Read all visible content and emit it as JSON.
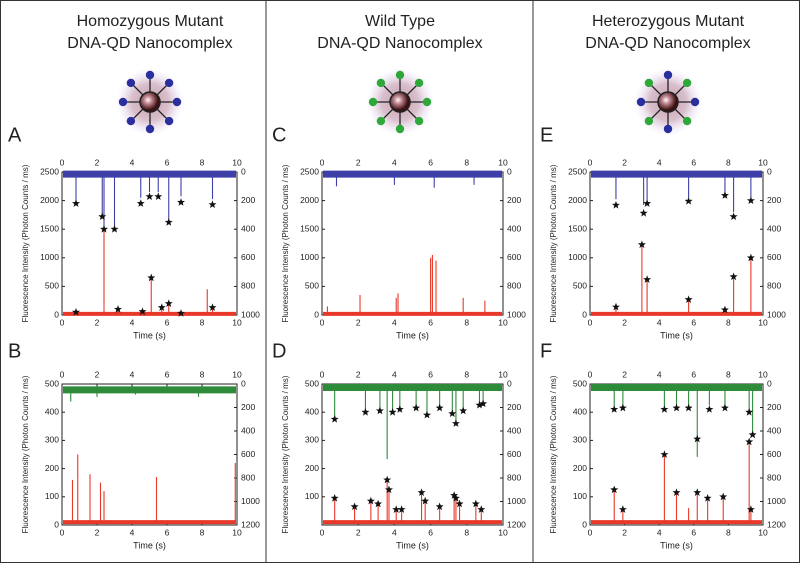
{
  "chart_data": [
    {
      "type": "trace",
      "panel": "A",
      "title": [
        "Homozygous Mutant",
        "DNA-QD Nanocomplex"
      ],
      "probe_colors": [
        "#2b2f9e",
        "#2b2f9e",
        "#2b2f9e",
        "#2b2f9e",
        "#2b2f9e",
        "#2b2f9e",
        "#2b2f9e",
        "#2b2f9e"
      ],
      "xlabel": "Time (s)",
      "ylabel": "Fluorescence Intensity (Photon Counts / ms)",
      "xlim": [
        0,
        10
      ],
      "xticks": [
        0,
        2,
        4,
        6,
        8,
        10
      ],
      "ylim": [
        0,
        2500
      ],
      "yticks": [
        0,
        500,
        1000,
        1500,
        2000,
        2500
      ],
      "y2lim": [
        1000,
        0
      ],
      "y2ticks": [
        0,
        200,
        400,
        600,
        800,
        1000
      ],
      "series": [
        {
          "color": "#3d40a8",
          "axis": "y2",
          "baseline": 15,
          "x": [
            0.8,
            2.3,
            2.4,
            3.0,
            4.5,
            5.0,
            5.5,
            6.1,
            6.8,
            8.6
          ],
          "values": [
            200,
            300,
            400,
            400,
            180,
            140,
            140,
            350,
            170,
            190
          ]
        },
        {
          "color": "#e8382a",
          "axis": "y",
          "baseline": 20,
          "x": [
            0.8,
            2.4,
            3.2,
            4.6,
            5.1,
            5.7,
            6.1,
            6.7,
            8.3,
            8.6
          ],
          "values": [
            80,
            1500,
            100,
            70,
            650,
            120,
            200,
            60,
            450,
            150
          ]
        }
      ],
      "markers": {
        "x": [
          0.8,
          2.3,
          2.4,
          3.0,
          4.5,
          5.0,
          5.5,
          6.1,
          6.8,
          8.6,
          0.8,
          3.2,
          4.6,
          5.1,
          5.7,
          6.1,
          6.8,
          8.6
        ],
        "y": [
          1950,
          1720,
          1500,
          1500,
          1950,
          2070,
          2070,
          1620,
          1970,
          1930,
          50,
          100,
          60,
          650,
          130,
          200,
          30,
          130
        ]
      }
    },
    {
      "type": "trace",
      "panel": "B",
      "xlabel": "Time (s)",
      "ylabel": "Fluorescence Intensity (Photon Counts / ms)",
      "xlim": [
        0,
        10
      ],
      "xticks": [
        0,
        2,
        4,
        6,
        8,
        10
      ],
      "ylim": [
        0,
        500
      ],
      "yticks": [
        0,
        100,
        200,
        300,
        400,
        500
      ],
      "y2lim": [
        1200,
        0
      ],
      "y2ticks": [
        0,
        200,
        400,
        600,
        800,
        1000,
        1200
      ],
      "series": [
        {
          "color": "#2e8b3a",
          "axis": "y2",
          "baseline": 50,
          "x": [
            0.5,
            2.0,
            4.2,
            7.8
          ],
          "values": [
            150,
            110,
            90,
            110
          ]
        },
        {
          "color": "#e8382a",
          "axis": "y",
          "baseline": 10,
          "x": [
            0.6,
            0.9,
            1.6,
            2.2,
            2.4,
            5.4,
            9.9
          ],
          "values": [
            160,
            250,
            180,
            150,
            120,
            170,
            220
          ]
        }
      ]
    },
    {
      "type": "trace",
      "panel": "C",
      "title": [
        "Wild Type",
        "DNA-QD Nanocomplex"
      ],
      "probe_colors": [
        "#2fa83a",
        "#2fa83a",
        "#2fa83a",
        "#2fa83a",
        "#2fa83a",
        "#2fa83a",
        "#2fa83a",
        "#2fa83a"
      ],
      "xlabel": "Time (s)",
      "ylabel": "Fluorescence Intensity (Photon Counts / ms)",
      "xlim": [
        0,
        10
      ],
      "xticks": [
        0,
        2,
        4,
        6,
        8,
        10
      ],
      "ylim": [
        0,
        2500
      ],
      "yticks": [
        0,
        500,
        1000,
        1500,
        2000,
        2500
      ],
      "y2lim": [
        1000,
        0
      ],
      "y2ticks": [
        0,
        200,
        400,
        600,
        800,
        1000
      ],
      "series": [
        {
          "color": "#3d40a8",
          "axis": "y2",
          "baseline": 15,
          "x": [
            0.8,
            4.0,
            6.2,
            8.4
          ],
          "values": [
            100,
            90,
            110,
            90
          ]
        },
        {
          "color": "#e8382a",
          "axis": "y",
          "baseline": 20,
          "x": [
            0.3,
            2.1,
            4.1,
            4.2,
            6.0,
            6.1,
            6.3,
            7.8,
            9.0
          ],
          "values": [
            150,
            350,
            300,
            380,
            1000,
            1050,
            950,
            300,
            250
          ]
        }
      ]
    },
    {
      "type": "trace",
      "panel": "D",
      "xlabel": "Time (s)",
      "ylabel": "Fluorescence Intensity (Photon Counts / ms)",
      "xlim": [
        0,
        10
      ],
      "xticks": [
        0,
        2,
        4,
        6,
        8,
        10
      ],
      "ylim": [
        0,
        500
      ],
      "yticks": [
        100,
        200,
        300,
        400,
        500
      ],
      "y2lim": [
        1200,
        0
      ],
      "y2ticks": [
        0,
        200,
        400,
        600,
        800,
        1000,
        1200
      ],
      "series": [
        {
          "color": "#2e8b3a",
          "axis": "y2",
          "baseline": 30,
          "x": [
            0.7,
            2.4,
            3.2,
            3.6,
            3.9,
            4.3,
            5.2,
            5.8,
            6.5,
            7.2,
            7.4,
            7.8,
            8.7,
            8.9
          ],
          "values": [
            290,
            240,
            220,
            640,
            220,
            200,
            200,
            260,
            200,
            250,
            330,
            230,
            170,
            160
          ]
        },
        {
          "color": "#e8382a",
          "axis": "y",
          "baseline": 10,
          "x": [
            0.7,
            1.8,
            2.7,
            3.1,
            3.6,
            3.7,
            4.1,
            4.4,
            5.5,
            5.7,
            6.5,
            7.3,
            7.4,
            7.6,
            8.5,
            8.8
          ],
          "values": [
            90,
            60,
            80,
            70,
            160,
            120,
            50,
            50,
            110,
            80,
            60,
            100,
            90,
            70,
            70,
            50
          ]
        }
      ],
      "markers": {
        "x": [
          0.7,
          2.4,
          3.2,
          3.9,
          4.3,
          5.2,
          5.8,
          6.5,
          7.2,
          7.4,
          7.8,
          8.7,
          8.9,
          0.7,
          1.8,
          2.7,
          3.1,
          3.6,
          3.7,
          4.1,
          4.4,
          5.5,
          5.7,
          6.5,
          7.3,
          7.4,
          7.6,
          8.5,
          8.8
        ],
        "y": [
          375,
          400,
          405,
          400,
          410,
          415,
          390,
          415,
          395,
          360,
          405,
          425,
          430,
          95,
          65,
          85,
          75,
          160,
          125,
          55,
          55,
          115,
          85,
          65,
          105,
          95,
          75,
          75,
          55
        ]
      }
    },
    {
      "type": "trace",
      "panel": "E",
      "title": [
        "Heterozygous Mutant",
        "DNA-QD Nanocomplex"
      ],
      "probe_colors": [
        "#2b2f9e",
        "#2fa83a",
        "#2b2f9e",
        "#2fa83a",
        "#2b2f9e",
        "#2fa83a",
        "#2b2f9e",
        "#2fa83a"
      ],
      "xlabel": "Time (s)",
      "ylabel": "Fluorescence Intensity (Photon Counts / ms)",
      "xlim": [
        0,
        10
      ],
      "xticks": [
        0,
        2,
        4,
        6,
        8,
        10
      ],
      "ylim": [
        0,
        2500
      ],
      "yticks": [
        0,
        500,
        1000,
        1500,
        2000,
        2500
      ],
      "y2lim": [
        1000,
        0
      ],
      "y2ticks": [
        0,
        200,
        400,
        600,
        800,
        1000
      ],
      "series": [
        {
          "color": "#3d40a8",
          "axis": "y2",
          "baseline": 15,
          "x": [
            1.5,
            3.1,
            3.3,
            5.7,
            7.8,
            8.3,
            9.3
          ],
          "values": [
            190,
            230,
            200,
            180,
            160,
            280,
            180
          ]
        },
        {
          "color": "#e8382a",
          "axis": "y",
          "baseline": 20,
          "x": [
            1.5,
            3.0,
            3.3,
            5.7,
            7.8,
            8.3,
            9.3
          ],
          "values": [
            110,
            1200,
            600,
            250,
            90,
            650,
            980
          ]
        }
      ],
      "markers": {
        "x": [
          1.5,
          3.1,
          3.3,
          5.7,
          7.8,
          8.3,
          9.3,
          1.5,
          3.0,
          3.3,
          5.7,
          7.8,
          8.3,
          9.3
        ],
        "y": [
          1920,
          1780,
          1950,
          1990,
          2090,
          1720,
          2000,
          140,
          1230,
          620,
          270,
          90,
          670,
          1000
        ]
      }
    },
    {
      "type": "trace",
      "panel": "F",
      "xlabel": "Time (s)",
      "ylabel": "Fluorescence Intensity (Photon Counts / ms)",
      "xlim": [
        0,
        10
      ],
      "xticks": [
        0,
        2,
        4,
        6,
        8,
        10
      ],
      "ylim": [
        0,
        500
      ],
      "yticks": [
        0,
        100,
        200,
        300,
        400,
        500
      ],
      "y2lim": [
        1200,
        0
      ],
      "y2ticks": [
        0,
        200,
        400,
        600,
        800,
        1000,
        1200
      ],
      "series": [
        {
          "color": "#2e8b3a",
          "axis": "y2",
          "baseline": 30,
          "x": [
            1.4,
            1.9,
            4.3,
            5.0,
            5.7,
            6.2,
            6.9,
            7.8,
            9.2,
            9.4
          ],
          "values": [
            190,
            180,
            200,
            190,
            190,
            620,
            180,
            190,
            230,
            420
          ]
        },
        {
          "color": "#e8382a",
          "axis": "y",
          "baseline": 10,
          "x": [
            1.4,
            1.9,
            4.3,
            5.0,
            5.7,
            6.2,
            6.8,
            7.7,
            9.2,
            9.3
          ],
          "values": [
            120,
            50,
            250,
            110,
            60,
            110,
            90,
            100,
            290,
            60
          ]
        }
      ],
      "markers": {
        "x": [
          1.4,
          1.9,
          4.3,
          5.0,
          5.7,
          6.2,
          6.9,
          7.8,
          9.2,
          9.4,
          1.4,
          1.9,
          4.3,
          5.0,
          6.2,
          6.8,
          7.7,
          9.2,
          9.3
        ],
        "y": [
          410,
          415,
          410,
          415,
          415,
          305,
          410,
          415,
          400,
          320,
          125,
          55,
          250,
          115,
          115,
          95,
          100,
          295,
          55
        ]
      }
    }
  ]
}
